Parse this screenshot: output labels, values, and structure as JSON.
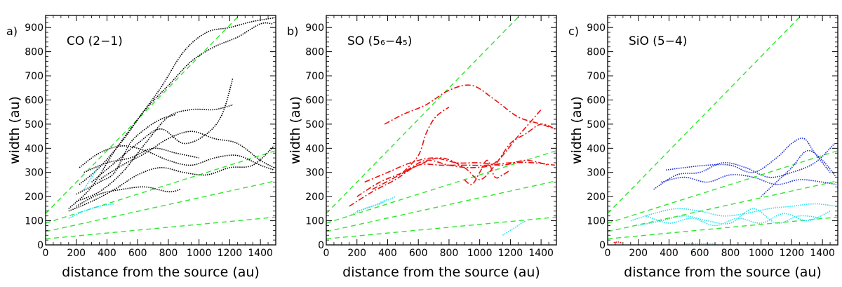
{
  "figure": {
    "xlabel": "distance from the source (au)",
    "ylabel": "width (au)"
  },
  "chart_data": [
    {
      "type": "line",
      "panel_label": "a)",
      "title": "CO (2−1)",
      "xlabel": "distance from the source (au)",
      "ylabel": "width (au)",
      "xlim": [
        0,
        1500
      ],
      "ylim": [
        0,
        950
      ],
      "xticks": [
        0,
        200,
        400,
        600,
        800,
        1000,
        1200,
        1400
      ],
      "yticks": [
        0,
        100,
        200,
        300,
        400,
        500,
        600,
        700,
        800,
        900
      ],
      "reference_lines": [
        {
          "slope": 0.65,
          "intercept": 130
        },
        {
          "slope": 0.2,
          "intercept": 90
        },
        {
          "slope": 0.14,
          "intercept": 55
        },
        {
          "slope": 0.06,
          "intercept": 25
        }
      ],
      "series": [
        {
          "name": "black-1",
          "color": "#000000",
          "style": "dotted",
          "x": [
            150,
            300,
            450,
            600,
            750,
            900,
            1050,
            1200,
            1350,
            1490
          ],
          "y": [
            150,
            240,
            390,
            520,
            650,
            800,
            880,
            900,
            925,
            940
          ]
        },
        {
          "name": "black-2",
          "color": "#000000",
          "style": "dotted",
          "x": [
            220,
            350,
            500,
            650,
            800,
            950,
            1100,
            1250,
            1400,
            1480
          ],
          "y": [
            250,
            320,
            430,
            560,
            660,
            760,
            820,
            860,
            915,
            915
          ]
        },
        {
          "name": "black-3",
          "color": "#000000",
          "style": "dotted",
          "x": [
            200,
            350,
            500,
            650,
            800,
            950,
            1100,
            1220
          ],
          "y": [
            180,
            220,
            300,
            420,
            530,
            560,
            560,
            580
          ]
        },
        {
          "name": "black-4",
          "color": "#000000",
          "style": "dotted",
          "x": [
            300,
            450,
            600,
            750,
            900,
            1050,
            1150,
            1220
          ],
          "y": [
            260,
            340,
            420,
            480,
            420,
            460,
            540,
            690
          ]
        },
        {
          "name": "black-5",
          "color": "#000000",
          "style": "dotted",
          "x": [
            350,
            500,
            650,
            800,
            950,
            1100,
            1250,
            1400,
            1490
          ],
          "y": [
            270,
            330,
            380,
            440,
            470,
            440,
            420,
            350,
            320
          ]
        },
        {
          "name": "black-6",
          "color": "#000000",
          "style": "dotted",
          "x": [
            220,
            350,
            500,
            650,
            800,
            950,
            1100,
            1250,
            1400,
            1490
          ],
          "y": [
            320,
            380,
            410,
            390,
            350,
            330,
            360,
            370,
            330,
            310
          ]
        },
        {
          "name": "black-7",
          "color": "#000000",
          "style": "dotted",
          "x": [
            150,
            300,
            450,
            600,
            750,
            900,
            1050,
            1200,
            1350,
            1490
          ],
          "y": [
            140,
            180,
            230,
            290,
            320,
            300,
            290,
            320,
            330,
            410
          ]
        },
        {
          "name": "black-8",
          "color": "#000000",
          "style": "dotted",
          "x": [
            250,
            400,
            550,
            700,
            850,
            1000
          ],
          "y": [
            300,
            340,
            360,
            400,
            380,
            360
          ]
        },
        {
          "name": "black-9",
          "color": "#000000",
          "style": "dotted",
          "x": [
            200,
            350,
            500,
            650,
            800,
            880
          ],
          "y": [
            160,
            210,
            230,
            240,
            220,
            230
          ]
        },
        {
          "name": "black-10",
          "color": "#000000",
          "style": "dotted",
          "x": [
            200,
            350,
            450,
            550,
            650,
            750,
            850
          ],
          "y": [
            210,
            260,
            300,
            420,
            480,
            520,
            540
          ]
        },
        {
          "name": "cyan-1",
          "color": "#22e0f0",
          "style": "dotted",
          "x": [
            150,
            250,
            350,
            450
          ],
          "y": [
            110,
            140,
            160,
            170
          ]
        },
        {
          "name": "cyan-2",
          "color": "#22e0f0",
          "style": "dotted",
          "x": [
            250,
            300,
            350
          ],
          "y": [
            230,
            280,
            330
          ]
        }
      ]
    },
    {
      "type": "line",
      "panel_label": "b)",
      "title": "SO (5₆−4₅)",
      "xlabel": "distance from the source (au)",
      "ylabel": "width (au)",
      "xlim": [
        0,
        1500
      ],
      "ylim": [
        0,
        950
      ],
      "xticks": [
        0,
        200,
        400,
        600,
        800,
        1000,
        1200,
        1400
      ],
      "yticks": [
        0,
        100,
        200,
        300,
        400,
        500,
        600,
        700,
        800,
        900
      ],
      "reference_lines": [
        {
          "slope": 0.65,
          "intercept": 130
        },
        {
          "slope": 0.2,
          "intercept": 90
        },
        {
          "slope": 0.14,
          "intercept": 55
        },
        {
          "slope": 0.06,
          "intercept": 25
        }
      ],
      "series": [
        {
          "name": "red-1",
          "color": "#ee1111",
          "style": "dashdot",
          "x": [
            380,
            500,
            650,
            800,
            950,
            1100,
            1250,
            1400,
            1490
          ],
          "y": [
            500,
            540,
            580,
            640,
            660,
            600,
            530,
            500,
            480
          ]
        },
        {
          "name": "red-2",
          "color": "#ee1111",
          "style": "dashdot",
          "x": [
            150,
            300,
            450,
            600,
            750,
            900,
            1050,
            1200,
            1350,
            1490
          ],
          "y": [
            160,
            220,
            270,
            330,
            330,
            330,
            330,
            340,
            340,
            330
          ]
        },
        {
          "name": "red-3",
          "color": "#ee1111",
          "style": "dashdot",
          "x": [
            200,
            350,
            500,
            650,
            800,
            950,
            1100,
            1250,
            1400
          ],
          "y": [
            200,
            260,
            300,
            350,
            330,
            320,
            340,
            450,
            560
          ]
        },
        {
          "name": "red-4",
          "color": "#ee1111",
          "style": "dashdot",
          "x": [
            250,
            400,
            550,
            700,
            850,
            1000,
            1150,
            1300,
            1450
          ],
          "y": [
            260,
            300,
            340,
            360,
            340,
            340,
            330,
            350,
            330
          ]
        },
        {
          "name": "red-5",
          "color": "#ee1111",
          "style": "dashdot",
          "x": [
            300,
            450,
            600,
            750,
            900,
            1000,
            1100,
            1200,
            1300,
            1400,
            1490
          ],
          "y": [
            230,
            280,
            330,
            360,
            320,
            270,
            330,
            420,
            460,
            500,
            480
          ]
        },
        {
          "name": "red-6",
          "color": "#ee1111",
          "style": "dashdot",
          "x": [
            500,
            600,
            650,
            700,
            750,
            800
          ],
          "y": [
            300,
            370,
            460,
            520,
            550,
            570
          ]
        },
        {
          "name": "red-7",
          "color": "#ee1111",
          "style": "dashdot",
          "x": [
            900,
            950,
            1000,
            1050,
            1100,
            1150,
            1200
          ],
          "y": [
            270,
            250,
            300,
            350,
            280,
            290,
            310
          ]
        },
        {
          "name": "cyan-1",
          "color": "#22e0f0",
          "style": "dotted",
          "x": [
            150,
            250,
            350,
            450
          ],
          "y": [
            120,
            150,
            170,
            200
          ]
        },
        {
          "name": "cyan-2",
          "color": "#22e0f0",
          "style": "dotted",
          "x": [
            200,
            300,
            400
          ],
          "y": [
            140,
            160,
            190
          ]
        },
        {
          "name": "cyan-3",
          "color": "#22e0f0",
          "style": "dotted",
          "x": [
            1150,
            1200,
            1250,
            1300
          ],
          "y": [
            40,
            60,
            80,
            100
          ]
        }
      ]
    },
    {
      "type": "line",
      "panel_label": "c)",
      "title": "SiO (5−4)",
      "xlabel": "distance from the source (au)",
      "ylabel": "width (au)",
      "xlim": [
        0,
        1500
      ],
      "ylim": [
        0,
        950
      ],
      "xticks": [
        0,
        200,
        400,
        600,
        800,
        1000,
        1200,
        1400
      ],
      "yticks": [
        0,
        100,
        200,
        300,
        400,
        500,
        600,
        700,
        800,
        900
      ],
      "reference_lines": [
        {
          "slope": 0.65,
          "intercept": 130
        },
        {
          "slope": 0.2,
          "intercept": 90
        },
        {
          "slope": 0.14,
          "intercept": 55
        },
        {
          "slope": 0.06,
          "intercept": 25
        }
      ],
      "series": [
        {
          "name": "blue-1",
          "color": "#1a2bd6",
          "style": "dotted",
          "x": [
            380,
            500,
            650,
            800,
            950,
            1100,
            1200,
            1280,
            1350,
            1450
          ],
          "y": [
            310,
            320,
            330,
            330,
            300,
            360,
            420,
            440,
            380,
            300
          ]
        },
        {
          "name": "blue-2",
          "color": "#1a2bd6",
          "style": "dotted",
          "x": [
            300,
            450,
            600,
            750,
            900,
            1050,
            1200,
            1350,
            1480
          ],
          "y": [
            230,
            290,
            300,
            340,
            320,
            280,
            300,
            340,
            420
          ]
        },
        {
          "name": "blue-3",
          "color": "#1a2bd6",
          "style": "dotted",
          "x": [
            350,
            500,
            650,
            800,
            950,
            1100,
            1250,
            1400,
            1490
          ],
          "y": [
            260,
            280,
            260,
            290,
            280,
            250,
            270,
            260,
            250
          ]
        },
        {
          "name": "blue-4",
          "color": "#1a2bd6",
          "style": "dotted",
          "x": [
            1000,
            1100,
            1200,
            1300,
            1400,
            1490
          ],
          "y": [
            200,
            260,
            320,
            390,
            350,
            280
          ]
        },
        {
          "name": "cyan-1",
          "color": "#22e0f0",
          "style": "dotted",
          "x": [
            150,
            300,
            450,
            600,
            750,
            900,
            1050,
            1200,
            1350,
            1490
          ],
          "y": [
            100,
            130,
            150,
            140,
            120,
            130,
            150,
            160,
            170,
            160
          ]
        },
        {
          "name": "cyan-2",
          "color": "#22e0f0",
          "style": "dotted",
          "x": [
            200,
            350,
            500,
            650,
            800,
            950,
            1100,
            1250,
            1400
          ],
          "y": [
            80,
            100,
            120,
            100,
            90,
            150,
            90,
            120,
            110
          ]
        },
        {
          "name": "cyan-3",
          "color": "#22e0f0",
          "style": "dotted",
          "x": [
            250,
            400,
            550,
            700,
            850,
            1000,
            1150,
            1300,
            1450
          ],
          "y": [
            120,
            90,
            110,
            80,
            110,
            90,
            130,
            100,
            140
          ]
        },
        {
          "name": "cyan-4",
          "color": "#22e0f0",
          "style": "dotted",
          "x": [
            500,
            550,
            600,
            650,
            700
          ],
          "y": [
            5,
            5,
            5,
            5,
            5
          ]
        },
        {
          "name": "red-1",
          "color": "#ee1111",
          "style": "dotted",
          "x": [
            40,
            70,
            90
          ],
          "y": [
            10,
            12,
            8
          ]
        }
      ]
    }
  ]
}
